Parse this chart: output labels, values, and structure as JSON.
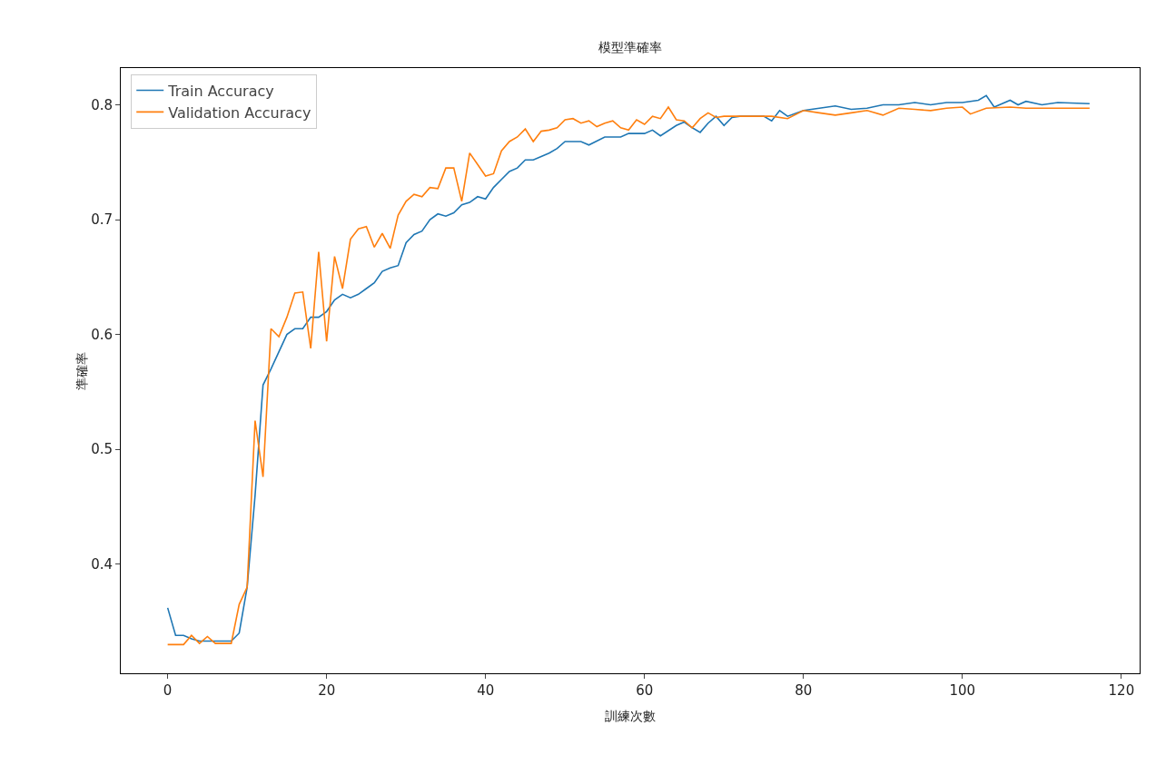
{
  "chart_data": {
    "type": "line",
    "title": "模型準確率",
    "xlabel": "訓練次數",
    "ylabel": "準確率",
    "xlim": [
      -5.9,
      122.3
    ],
    "ylim": [
      0.305,
      0.832
    ],
    "xticks": [
      0,
      20,
      40,
      60,
      80,
      100,
      120
    ],
    "yticks": [
      0.4,
      0.5,
      0.6,
      0.7,
      0.8
    ],
    "grid": false,
    "legend": "top left",
    "marker": "none",
    "line_style": "solid",
    "series": [
      {
        "name": "Train Accuracy",
        "color": "#1f77b4",
        "x": [
          0,
          1,
          2,
          3,
          4,
          5,
          6,
          7,
          8,
          9,
          10,
          11,
          12,
          13,
          14,
          15,
          16,
          17,
          18,
          19,
          20,
          21,
          22,
          23,
          24,
          25,
          26,
          27,
          28,
          29,
          30,
          31,
          32,
          33,
          34,
          35,
          36,
          37,
          38,
          39,
          40,
          41,
          42,
          43,
          44,
          45,
          46,
          47,
          48,
          49,
          50,
          52,
          53,
          55,
          57,
          58,
          60,
          61,
          62,
          64,
          65,
          66,
          67,
          68,
          69,
          70,
          71,
          72,
          75,
          76,
          77,
          78,
          80,
          82,
          84,
          86,
          88,
          90,
          92,
          94,
          96,
          98,
          100,
          102,
          103,
          104,
          106,
          107,
          108,
          110,
          112,
          116
        ],
        "values": [
          0.362,
          0.338,
          0.338,
          0.335,
          0.333,
          0.333,
          0.333,
          0.333,
          0.333,
          0.34,
          0.38,
          0.46,
          0.556,
          0.57,
          0.585,
          0.6,
          0.605,
          0.605,
          0.615,
          0.615,
          0.62,
          0.63,
          0.635,
          0.632,
          0.635,
          0.64,
          0.645,
          0.655,
          0.658,
          0.66,
          0.68,
          0.687,
          0.69,
          0.7,
          0.705,
          0.703,
          0.706,
          0.713,
          0.715,
          0.72,
          0.718,
          0.728,
          0.735,
          0.742,
          0.745,
          0.752,
          0.752,
          0.755,
          0.758,
          0.762,
          0.768,
          0.768,
          0.765,
          0.772,
          0.772,
          0.775,
          0.775,
          0.778,
          0.773,
          0.782,
          0.785,
          0.78,
          0.776,
          0.784,
          0.79,
          0.782,
          0.789,
          0.79,
          0.79,
          0.786,
          0.795,
          0.79,
          0.795,
          0.797,
          0.799,
          0.796,
          0.797,
          0.8,
          0.8,
          0.802,
          0.8,
          0.802,
          0.802,
          0.804,
          0.808,
          0.798,
          0.804,
          0.8,
          0.803,
          0.8,
          0.802,
          0.801
        ]
      },
      {
        "name": "Validation Accuracy",
        "color": "#ff7f0e",
        "x": [
          0,
          1,
          2,
          3,
          4,
          5,
          6,
          7,
          8,
          9,
          10,
          11,
          12,
          13,
          14,
          15,
          16,
          17,
          18,
          19,
          20,
          21,
          22,
          23,
          24,
          25,
          26,
          27,
          28,
          29,
          30,
          31,
          32,
          33,
          34,
          35,
          36,
          37,
          38,
          39,
          40,
          41,
          42,
          43,
          44,
          45,
          46,
          47,
          48,
          49,
          50,
          51,
          52,
          53,
          54,
          55,
          56,
          57,
          58,
          59,
          60,
          61,
          62,
          63,
          64,
          65,
          66,
          67,
          68,
          69,
          70,
          72,
          76,
          78,
          80,
          82,
          84,
          86,
          88,
          90,
          92,
          94,
          96,
          98,
          100,
          101,
          103,
          106,
          108,
          110,
          112,
          116
        ],
        "values": [
          0.33,
          0.33,
          0.33,
          0.338,
          0.331,
          0.337,
          0.331,
          0.331,
          0.331,
          0.365,
          0.38,
          0.525,
          0.476,
          0.605,
          0.598,
          0.615,
          0.636,
          0.637,
          0.588,
          0.672,
          0.594,
          0.668,
          0.64,
          0.683,
          0.692,
          0.694,
          0.676,
          0.688,
          0.675,
          0.704,
          0.716,
          0.722,
          0.72,
          0.728,
          0.727,
          0.745,
          0.745,
          0.716,
          0.758,
          0.748,
          0.738,
          0.74,
          0.76,
          0.768,
          0.772,
          0.779,
          0.768,
          0.777,
          0.778,
          0.78,
          0.787,
          0.788,
          0.784,
          0.786,
          0.781,
          0.784,
          0.786,
          0.78,
          0.778,
          0.787,
          0.783,
          0.79,
          0.788,
          0.798,
          0.787,
          0.786,
          0.78,
          0.788,
          0.793,
          0.789,
          0.79,
          0.79,
          0.79,
          0.788,
          0.795,
          0.793,
          0.791,
          0.793,
          0.795,
          0.791,
          0.797,
          0.796,
          0.795,
          0.797,
          0.798,
          0.792,
          0.797,
          0.798,
          0.797,
          0.797,
          0.797,
          0.797
        ]
      }
    ]
  }
}
